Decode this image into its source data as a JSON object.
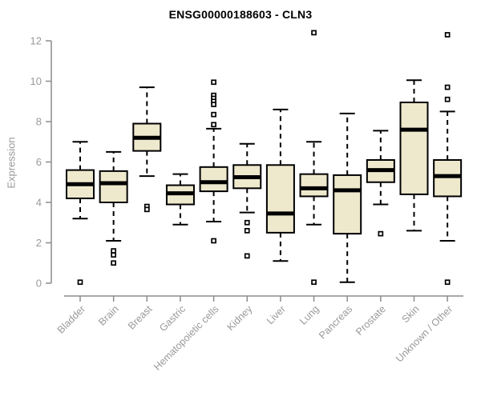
{
  "title": "ENSG00000188603 - CLN3",
  "chart_data": {
    "type": "boxplot",
    "title": "ENSG00000188603 - CLN3",
    "xlabel": "",
    "ylabel": "Expression",
    "ylim": [
      0,
      12
    ],
    "yticks": [
      0,
      2,
      4,
      6,
      8,
      10,
      12
    ],
    "grid": false,
    "legend": "none",
    "categories": [
      "Bladder",
      "Brain",
      "Breast",
      "Gastric",
      "Hematopoietic cells",
      "Kidney",
      "Liver",
      "Lung",
      "Pancreas",
      "Prostate",
      "Skin",
      "Unknown / Other"
    ],
    "series": [
      {
        "category": "Bladder",
        "whisker_low": 3.2,
        "q1": 4.2,
        "median": 4.9,
        "q3": 5.6,
        "whisker_high": 7.0,
        "outliers": [
          0.05
        ]
      },
      {
        "category": "Brain",
        "whisker_low": 2.1,
        "q1": 4.0,
        "median": 4.95,
        "q3": 5.55,
        "whisker_high": 6.5,
        "outliers": [
          1.6,
          1.4,
          1.0
        ]
      },
      {
        "category": "Breast",
        "whisker_low": 5.3,
        "q1": 6.55,
        "median": 7.2,
        "q3": 7.9,
        "whisker_high": 9.7,
        "outliers": [
          3.8,
          3.65
        ]
      },
      {
        "category": "Gastric",
        "whisker_low": 2.9,
        "q1": 3.9,
        "median": 4.45,
        "q3": 4.85,
        "whisker_high": 5.4,
        "outliers": []
      },
      {
        "category": "Hematopoietic cells",
        "whisker_low": 3.05,
        "q1": 4.55,
        "median": 5.0,
        "q3": 5.75,
        "whisker_high": 7.65,
        "outliers": [
          9.95,
          9.3,
          9.15,
          9.0,
          8.85,
          8.35,
          7.85,
          2.1
        ]
      },
      {
        "category": "Kidney",
        "whisker_low": 3.5,
        "q1": 4.7,
        "median": 5.25,
        "q3": 5.85,
        "whisker_high": 6.9,
        "outliers": [
          3.0,
          2.6,
          1.35
        ]
      },
      {
        "category": "Liver",
        "whisker_low": 1.1,
        "q1": 2.5,
        "median": 3.45,
        "q3": 5.85,
        "whisker_high": 8.6,
        "outliers": []
      },
      {
        "category": "Lung",
        "whisker_low": 2.9,
        "q1": 4.3,
        "median": 4.7,
        "q3": 5.4,
        "whisker_high": 7.0,
        "outliers": [
          12.4,
          0.05
        ]
      },
      {
        "category": "Pancreas",
        "whisker_low": 0.05,
        "q1": 2.45,
        "median": 4.6,
        "q3": 5.35,
        "whisker_high": 8.4,
        "outliers": []
      },
      {
        "category": "Prostate",
        "whisker_low": 3.9,
        "q1": 5.0,
        "median": 5.6,
        "q3": 6.1,
        "whisker_high": 7.55,
        "outliers": [
          2.45
        ]
      },
      {
        "category": "Skin",
        "whisker_low": 2.6,
        "q1": 4.4,
        "median": 7.6,
        "q3": 8.95,
        "whisker_high": 10.05,
        "outliers": []
      },
      {
        "category": "Unknown / Other",
        "whisker_low": 2.1,
        "q1": 4.3,
        "median": 5.3,
        "q3": 6.1,
        "whisker_high": 8.5,
        "outliers": [
          12.3,
          9.7,
          9.1,
          0.05
        ]
      }
    ],
    "colors": {
      "box_fill": "#EEE8CD",
      "box_stroke": "#000000",
      "median": "#000000",
      "whisker": "#000000",
      "outlier": "#000000",
      "axis": "#8C8C8C",
      "tick_label": "#999999",
      "title": "#000000"
    }
  }
}
